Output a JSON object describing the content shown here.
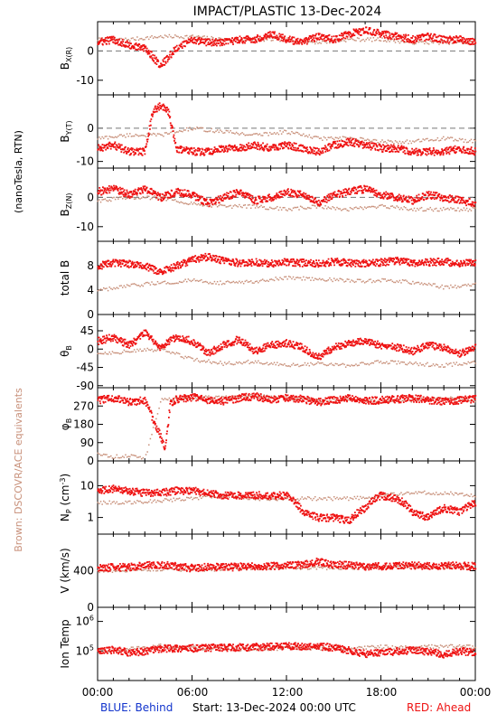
{
  "title": "IMPACT/PLASTIC   13-Dec-2024",
  "left_label_units": "(nanoTesla, RTN)",
  "left_label_brown": "Brown: DSCOVR/ACE equivalents",
  "x_ticks": [
    "00:00",
    "06:00",
    "12:00",
    "18:00",
    "00:00"
  ],
  "footer": {
    "behind": "BLUE: Behind",
    "start": "Start: 13-Dec-2024 00:00 UTC",
    "ahead": "RED: Ahead"
  },
  "colors": {
    "ahead": "#ee1111",
    "ace": "#c8907a",
    "behind": "#1133cc",
    "axis": "#000000",
    "dashed": "#777777"
  },
  "chart_data": [
    {
      "type": "scatter",
      "panel": "bx",
      "ylabel": "B_X(R)",
      "ylim": [
        -15,
        10
      ],
      "yticks": [
        "0",
        "-10"
      ],
      "ytick_values": [
        0,
        -10
      ],
      "zero_line": true,
      "series": [
        {
          "name": "Ahead",
          "color": "ahead",
          "x": [
            0,
            1,
            2,
            3,
            4,
            5,
            6,
            7,
            8,
            9,
            10,
            11,
            12,
            13,
            14,
            15,
            16,
            17,
            18,
            19,
            20,
            21,
            22,
            23,
            24
          ],
          "y": [
            3,
            4,
            2,
            1,
            -5,
            1,
            4,
            3,
            3,
            4,
            4,
            6,
            4,
            3,
            5,
            4,
            6,
            7,
            6,
            5,
            4,
            5,
            4,
            4,
            3
          ]
        },
        {
          "name": "ACE",
          "color": "ace",
          "x": [
            0,
            2,
            4,
            6,
            8,
            10,
            12,
            14,
            16,
            18,
            20,
            22,
            24
          ],
          "y": [
            4,
            4,
            5,
            5,
            4,
            4,
            4,
            3,
            4,
            4,
            3,
            3,
            3
          ]
        }
      ]
    },
    {
      "type": "scatter",
      "panel": "by",
      "ylabel": "B_Y(T)",
      "ylim": [
        -12,
        10
      ],
      "yticks": [
        "0",
        "-10"
      ],
      "ytick_values": [
        0,
        -10
      ],
      "zero_line": true,
      "series": [
        {
          "name": "Ahead",
          "color": "ahead",
          "x": [
            0,
            1,
            2,
            3,
            3.5,
            4,
            4.5,
            5,
            6,
            7,
            8,
            9,
            10,
            11,
            12,
            13,
            14,
            15,
            16,
            17,
            18,
            19,
            20,
            21,
            22,
            23,
            24
          ],
          "y": [
            -6,
            -5,
            -7,
            -7,
            5,
            7,
            5,
            -6,
            -7,
            -7,
            -6,
            -6,
            -5,
            -6,
            -5,
            -6,
            -7,
            -5,
            -4,
            -5,
            -6,
            -6,
            -7,
            -7,
            -7,
            -6,
            -7
          ]
        },
        {
          "name": "ACE",
          "color": "ace",
          "x": [
            0,
            2,
            4,
            6,
            8,
            10,
            12,
            14,
            16,
            18,
            20,
            22,
            24
          ],
          "y": [
            -3,
            -2,
            -2,
            0,
            -1,
            -2,
            -1,
            -3,
            -3,
            -4,
            -4,
            -3,
            -4
          ]
        }
      ]
    },
    {
      "type": "scatter",
      "panel": "bz",
      "ylabel": "B_Z(N)",
      "ylim": [
        -15,
        10
      ],
      "yticks": [
        "0",
        "-10"
      ],
      "ytick_values": [
        0,
        -10
      ],
      "zero_line": true,
      "series": [
        {
          "name": "Ahead",
          "color": "ahead",
          "x": [
            0,
            1,
            2,
            3,
            4,
            5,
            6,
            7,
            8,
            9,
            10,
            11,
            12,
            13,
            14,
            15,
            16,
            17,
            18,
            19,
            20,
            21,
            22,
            23,
            24
          ],
          "y": [
            2,
            3,
            1,
            3,
            0,
            2,
            1,
            -2,
            0,
            2,
            -1,
            0,
            2,
            1,
            -2,
            1,
            2,
            3,
            1,
            0,
            -1,
            1,
            0,
            -1,
            -2
          ]
        },
        {
          "name": "ACE",
          "color": "ace",
          "x": [
            0,
            2,
            4,
            6,
            8,
            10,
            12,
            14,
            16,
            18,
            20,
            22,
            24
          ],
          "y": [
            -1,
            0,
            0,
            -2,
            -3,
            -3,
            -4,
            -3,
            -4,
            -3,
            -4,
            -4,
            -4
          ]
        }
      ]
    },
    {
      "type": "scatter",
      "panel": "btot",
      "ylabel": "total B",
      "ylim": [
        0,
        12
      ],
      "yticks": [
        "8",
        "4",
        "0"
      ],
      "ytick_values": [
        8,
        4,
        0
      ],
      "zero_line": false,
      "series": [
        {
          "name": "Ahead",
          "color": "ahead",
          "x": [
            0,
            1,
            2,
            3,
            4,
            5,
            6,
            7,
            8,
            9,
            10,
            11,
            12,
            13,
            14,
            15,
            16,
            17,
            18,
            19,
            20,
            21,
            22,
            23,
            24
          ],
          "y": [
            8,
            8.5,
            8.3,
            8,
            7,
            8,
            9,
            9.5,
            8.8,
            8.5,
            8.6,
            8.4,
            8.6,
            8.5,
            8.4,
            8.7,
            8.5,
            8.4,
            8.6,
            8.8,
            8.5,
            8.6,
            8.7,
            8.4,
            8.6
          ]
        },
        {
          "name": "ACE",
          "color": "ace",
          "x": [
            0,
            1,
            2,
            3,
            4,
            5,
            6,
            7,
            8,
            9,
            10,
            11,
            12,
            13,
            14,
            15,
            16,
            17,
            18,
            19,
            20,
            21,
            22,
            23,
            24
          ],
          "y": [
            4,
            4.3,
            4.7,
            5,
            5.2,
            5.4,
            5.6,
            5.4,
            5.2,
            5.3,
            5.5,
            5.8,
            6,
            6,
            5.9,
            5.7,
            5.6,
            5.5,
            5.6,
            5.5,
            5.3,
            5,
            4.5,
            4.7,
            4.9
          ]
        }
      ]
    },
    {
      "type": "scatter",
      "panel": "theta",
      "ylabel": "θ_B",
      "ylim": [
        -95,
        85
      ],
      "yticks": [
        "45",
        "0",
        "-45",
        "-90"
      ],
      "ytick_values": [
        45,
        0,
        -45,
        -90
      ],
      "zero_line": false,
      "series": [
        {
          "name": "Ahead",
          "color": "ahead",
          "x": [
            0,
            1,
            2,
            3,
            4,
            5,
            6,
            7,
            8,
            9,
            10,
            11,
            12,
            13,
            14,
            15,
            16,
            17,
            18,
            19,
            20,
            21,
            22,
            23,
            24
          ],
          "y": [
            20,
            30,
            10,
            40,
            5,
            30,
            20,
            -10,
            10,
            25,
            -5,
            10,
            15,
            5,
            -20,
            5,
            15,
            20,
            10,
            5,
            -5,
            10,
            5,
            -10,
            5
          ]
        },
        {
          "name": "ACE",
          "color": "ace",
          "x": [
            0,
            2,
            4,
            6,
            8,
            10,
            12,
            14,
            16,
            18,
            20,
            22,
            24
          ],
          "y": [
            -10,
            -5,
            0,
            -25,
            -35,
            -30,
            -40,
            -35,
            -40,
            -30,
            -35,
            -40,
            -30
          ]
        }
      ]
    },
    {
      "type": "scatter",
      "panel": "phi",
      "ylabel": "φ_B",
      "ylim": [
        0,
        360
      ],
      "yticks": [
        "270",
        "180",
        "90",
        "0"
      ],
      "ytick_values": [
        270,
        180,
        90,
        0
      ],
      "zero_line": false,
      "series": [
        {
          "name": "Ahead",
          "color": "ahead",
          "x": [
            0,
            1,
            2,
            3,
            4,
            4.3,
            4.6,
            5,
            6,
            7,
            8,
            9,
            10,
            11,
            12,
            13,
            14,
            15,
            16,
            17,
            18,
            19,
            20,
            21,
            22,
            23,
            24
          ],
          "y": [
            300,
            310,
            290,
            300,
            120,
            60,
            280,
            305,
            315,
            300,
            295,
            310,
            320,
            300,
            310,
            305,
            290,
            300,
            310,
            295,
            300,
            305,
            310,
            300,
            295,
            300,
            305
          ]
        },
        {
          "name": "ACE",
          "color": "ace",
          "x": [
            0,
            1,
            2,
            3,
            4,
            6,
            8,
            10,
            12,
            14,
            16,
            18,
            20,
            22,
            24
          ],
          "y": [
            40,
            20,
            30,
            10,
            300,
            310,
            315,
            320,
            310,
            300,
            305,
            295,
            300,
            310,
            300
          ]
        }
      ]
    },
    {
      "type": "scatter",
      "panel": "np",
      "ylabel": "N_P (cm^-3)",
      "ylim": [
        0.3,
        60
      ],
      "yscale": "log",
      "yticks": [
        "10",
        "1"
      ],
      "ytick_values": [
        10,
        1
      ],
      "zero_line": false,
      "series": [
        {
          "name": "Ahead",
          "color": "ahead",
          "x": [
            0,
            1,
            2,
            3,
            4,
            5,
            6,
            7,
            8,
            9,
            10,
            11,
            12,
            13,
            14,
            15,
            16,
            17,
            18,
            19,
            20,
            21,
            22,
            23,
            24
          ],
          "y": [
            7,
            8,
            7,
            6,
            6,
            7,
            7,
            6,
            5,
            5,
            5,
            5,
            5,
            1.5,
            1,
            1,
            0.8,
            2,
            5,
            4,
            1.5,
            1,
            2,
            1.5,
            3
          ]
        },
        {
          "name": "ACE",
          "color": "ace",
          "x": [
            0,
            2,
            4,
            6,
            8,
            10,
            12,
            14,
            16,
            18,
            20,
            22,
            24
          ],
          "y": [
            3,
            3,
            3.5,
            4,
            5,
            4,
            4,
            4,
            4,
            5,
            6,
            6,
            5
          ]
        }
      ]
    },
    {
      "type": "scatter",
      "panel": "v",
      "ylabel": "V (km/s)",
      "ylim": [
        0,
        800
      ],
      "yticks": [
        "400",
        "0"
      ],
      "ytick_values": [
        400,
        0
      ],
      "zero_line": false,
      "series": [
        {
          "name": "Ahead",
          "color": "ahead",
          "x": [
            0,
            1,
            2,
            3,
            4,
            5,
            6,
            7,
            8,
            9,
            10,
            11,
            12,
            13,
            14,
            15,
            16,
            17,
            18,
            19,
            20,
            21,
            22,
            23,
            24
          ],
          "y": [
            430,
            440,
            440,
            460,
            470,
            450,
            430,
            445,
            440,
            445,
            450,
            455,
            460,
            470,
            500,
            470,
            460,
            450,
            450,
            460,
            460,
            455,
            460,
            455,
            450
          ]
        },
        {
          "name": "ACE",
          "color": "ace",
          "x": [
            0,
            2,
            4,
            6,
            8,
            10,
            12,
            14,
            16,
            18,
            20,
            22,
            24
          ],
          "y": [
            400,
            410,
            420,
            410,
            420,
            430,
            440,
            430,
            430,
            440,
            450,
            440,
            430
          ]
        }
      ]
    },
    {
      "type": "scatter",
      "panel": "temp",
      "ylabel": "Ion Temp",
      "ylim": [
        10000,
        3000000
      ],
      "yscale": "log",
      "yticks": [
        "10^6",
        "10^5"
      ],
      "ytick_values": [
        1000000,
        100000
      ],
      "zero_line": false,
      "series": [
        {
          "name": "Ahead",
          "color": "ahead",
          "x": [
            0,
            1,
            2,
            3,
            4,
            14,
            17,
            18,
            19,
            20,
            22,
            23,
            24
          ],
          "y": [
            100000,
            110000,
            90000,
            100000,
            120000,
            150000,
            80000,
            90000,
            100000,
            110000,
            80000,
            100000,
            90000
          ]
        },
        {
          "name": "ACE",
          "color": "ace",
          "x": [
            0,
            2,
            4,
            6,
            8,
            10,
            12,
            14,
            16,
            18,
            20,
            22,
            24
          ],
          "y": [
            100000,
            120000,
            150000,
            130000,
            120000,
            110000,
            130000,
            120000,
            130000,
            140000,
            130000,
            150000,
            140000
          ]
        }
      ]
    }
  ]
}
